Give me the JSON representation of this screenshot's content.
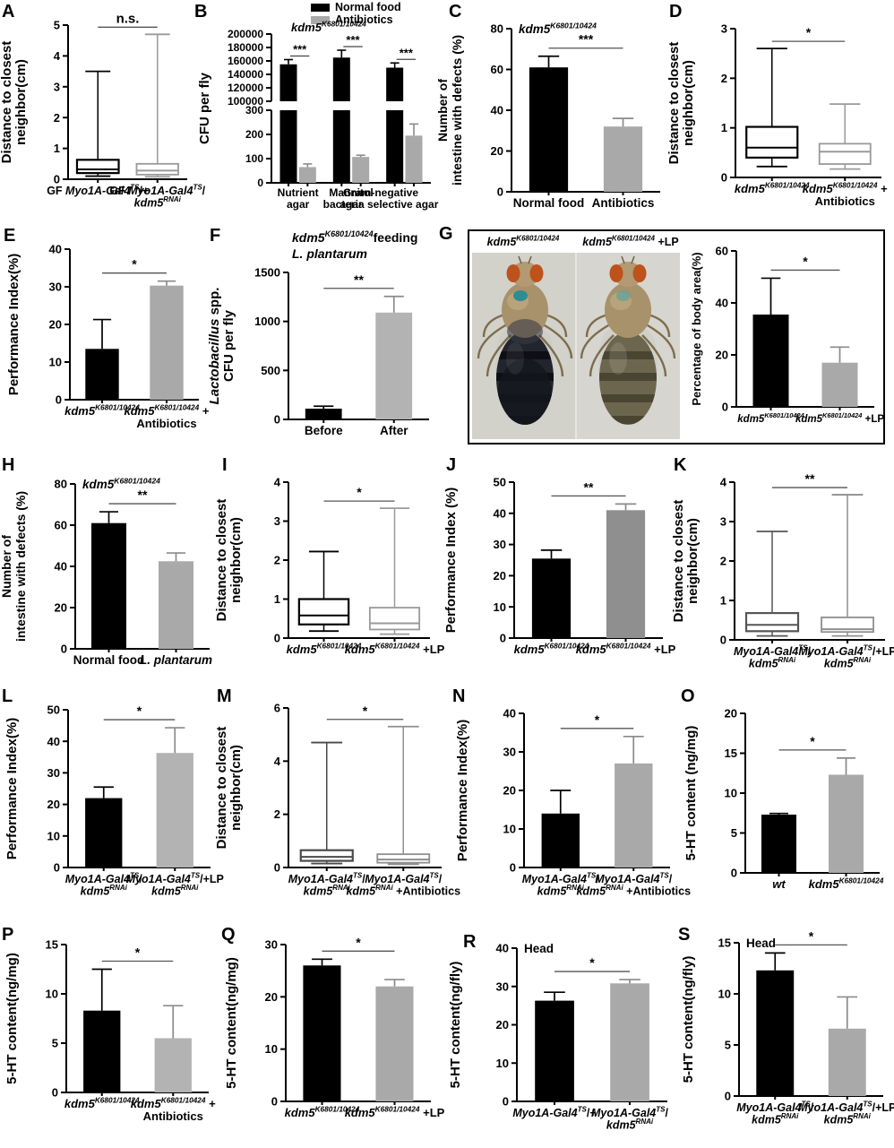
{
  "figure": {
    "background": "#ffffff",
    "panel_letters": [
      "A",
      "B",
      "C",
      "D",
      "E",
      "F",
      "G",
      "H",
      "I",
      "J",
      "K",
      "L",
      "M",
      "N",
      "O",
      "P",
      "Q",
      "R",
      "S"
    ]
  },
  "colors": {
    "bar_black": "#000000",
    "bar_gray": "#a9a9a9",
    "sig_line": "#555555"
  },
  "chart_data": [
    {
      "panel": "A",
      "type": "box",
      "ylabel": "Distance to closest\nneighbor(cm)",
      "ylim": [
        0,
        5
      ],
      "yticks": [
        0,
        1,
        2,
        3,
        4,
        5
      ],
      "sig": "n.s.",
      "categories": [
        "GF ~Myo1A-Gal4~^TS^/+",
        "GF ~Myo1A-Gal4~^TS^/\n~kdm5~^RNAi^"
      ],
      "boxes": [
        {
          "min": 0.1,
          "q1": 0.2,
          "median": 0.32,
          "q3": 0.63,
          "max": 3.5,
          "color": "#000000"
        },
        {
          "min": 0.08,
          "q1": 0.15,
          "median": 0.28,
          "q3": 0.5,
          "max": 4.7,
          "color": "#9a9a9a"
        }
      ]
    },
    {
      "panel": "B",
      "type": "bar-broken",
      "title": "~kdm5~^K6801/10424^",
      "ylabel": "CFU per fly",
      "legend": [
        {
          "label": "Normal food",
          "color": "#000000"
        },
        {
          "label": "Antibiotics",
          "color": "#a9a9a9"
        }
      ],
      "axis_upper": {
        "lim": [
          100000,
          200000
        ],
        "ticks": [
          100000,
          120000,
          140000,
          160000,
          180000,
          200000
        ]
      },
      "axis_lower": {
        "lim": [
          0,
          300
        ],
        "ticks": [
          0,
          100,
          200,
          300
        ]
      },
      "categories": [
        "Nutrient\nagar",
        "Mannitol\nagar",
        "Gram-negative\nbacteria selective agar"
      ],
      "series": [
        {
          "name": "Normal food",
          "color": "#000000",
          "values": [
            155000,
            165000,
            150000
          ],
          "errors": [
            7000,
            11000,
            7000
          ]
        },
        {
          "name": "Antibiotics",
          "color": "#a9a9a9",
          "values": [
            65,
            107,
            195
          ],
          "errors": [
            13,
            7,
            48
          ]
        }
      ],
      "sig": [
        "***",
        "***",
        "***"
      ]
    },
    {
      "panel": "C",
      "type": "bar",
      "title": "~kdm5~^K6801/10424^",
      "ylabel": "Number of\nintestine with defects (%)",
      "ylim": [
        0,
        80
      ],
      "yticks": [
        0,
        20,
        40,
        60,
        80
      ],
      "sig": "***",
      "categories": [
        "Normal food",
        "Antibiotics"
      ],
      "values": [
        61,
        32
      ],
      "errors": [
        5.5,
        4
      ],
      "colors": [
        "#000000",
        "#a9a9a9"
      ]
    },
    {
      "panel": "D",
      "type": "box",
      "ylabel": "Distance to closest\nneighbor(cm)",
      "ylim": [
        0,
        3
      ],
      "yticks": [
        0,
        1,
        2,
        3
      ],
      "sig": "*",
      "categories": [
        "~kdm5~^K6801/10424^",
        "~kdm5~^K6801/10424^ +\nAntibiotics"
      ],
      "boxes": [
        {
          "min": 0.22,
          "q1": 0.4,
          "median": 0.6,
          "q3": 1.02,
          "max": 2.6,
          "color": "#000000"
        },
        {
          "min": 0.17,
          "q1": 0.27,
          "median": 0.52,
          "q3": 0.68,
          "max": 1.48,
          "color": "#9a9a9a"
        }
      ]
    },
    {
      "panel": "E",
      "type": "bar",
      "ylabel": "Performance Index(%)",
      "ylim": [
        0,
        40
      ],
      "yticks": [
        0,
        10,
        20,
        30,
        40
      ],
      "sig": "*",
      "categories": [
        "~kdm5~^K6801/10424^",
        "~kdm5~^K6801/10424^ +\nAntibiotics"
      ],
      "values": [
        13.5,
        30.3
      ],
      "errors": [
        7.8,
        1.2
      ],
      "colors": [
        "#000000",
        "#a9a9a9"
      ]
    },
    {
      "panel": "F",
      "type": "bar",
      "title": "~kdm5~^K6801/10424^feeding\n~L. plantarum~",
      "ylabel": "~Lactobacillus~ spp.\nCFU per fly",
      "ylim": [
        0,
        1500
      ],
      "yticks": [
        0,
        500,
        1000,
        1500
      ],
      "sig": "**",
      "categories": [
        "Before",
        "After"
      ],
      "values": [
        110,
        1090
      ],
      "errors": [
        25,
        165
      ],
      "colors": [
        "#000000",
        "#b3b3b3"
      ]
    },
    {
      "panel": "G",
      "type": "photo-bar",
      "photo_labels": [
        "~kdm5~^K6801/10424^",
        "~kdm5~^K6801/10424^ +LP"
      ],
      "bar": {
        "ylabel": "Percentage of body area(%)",
        "ylim": [
          0,
          60
        ],
        "yticks": [
          0,
          20,
          40,
          60
        ],
        "sig": "*",
        "categories": [
          "~kdm5~^K6801/10424^",
          "~kdm5~^K6801/10424^ +LP"
        ],
        "values": [
          35.5,
          17
        ],
        "errors": [
          14,
          6
        ],
        "colors": [
          "#000000",
          "#a9a9a9"
        ]
      }
    },
    {
      "panel": "H",
      "type": "bar",
      "title": "~kdm5~^K6801/10424^",
      "ylabel": "Number of\nintestine with defects (%)",
      "ylim": [
        0,
        80
      ],
      "yticks": [
        0,
        20,
        40,
        60,
        80
      ],
      "sig": "**",
      "categories": [
        "Normal food",
        "~L. plantarum~"
      ],
      "values": [
        61,
        42.5
      ],
      "errors": [
        5.5,
        4
      ],
      "colors": [
        "#000000",
        "#a9a9a9"
      ]
    },
    {
      "panel": "I",
      "type": "box",
      "ylabel": "Distance to closest\nneighbor(cm)",
      "ylim": [
        0,
        4
      ],
      "yticks": [
        0,
        1,
        2,
        3,
        4
      ],
      "sig": "*",
      "categories": [
        "~kdm5~^K6801/10424^",
        "~kdm5~^K6801/10424^ +LP"
      ],
      "boxes": [
        {
          "min": 0.18,
          "q1": 0.35,
          "median": 0.58,
          "q3": 1.0,
          "max": 2.22,
          "color": "#000000"
        },
        {
          "min": 0.1,
          "q1": 0.22,
          "median": 0.38,
          "q3": 0.78,
          "max": 3.33,
          "color": "#9a9a9a"
        }
      ]
    },
    {
      "panel": "J",
      "type": "bar",
      "ylabel": "Performance Index (%)",
      "ylim": [
        0,
        50
      ],
      "yticks": [
        0,
        10,
        20,
        30,
        40,
        50
      ],
      "sig": "**",
      "categories": [
        "~kdm5~^K6801/10424^",
        "~kdm5~^K6801/10424^ +LP"
      ],
      "values": [
        25.5,
        41
      ],
      "errors": [
        2.7,
        2
      ],
      "colors": [
        "#000000",
        "#8f8f8f"
      ]
    },
    {
      "panel": "K",
      "type": "box",
      "ylabel": "Distance to closest\nneighbor(cm)",
      "ylim": [
        0,
        4
      ],
      "yticks": [
        0,
        1,
        2,
        3,
        4
      ],
      "sig": "**",
      "categories": [
        "~Myo1A-Gal4~^TS^/\n~kdm5~^RNAi^",
        "~Myo1A-Gal4~^TS^/+LP\n~kdm5~^RNAi^"
      ],
      "boxes": [
        {
          "min": 0.1,
          "q1": 0.22,
          "median": 0.38,
          "q3": 0.68,
          "max": 2.75,
          "color": "#555555"
        },
        {
          "min": 0.1,
          "q1": 0.2,
          "median": 0.27,
          "q3": 0.57,
          "max": 3.68,
          "color": "#8f8f8f"
        }
      ]
    },
    {
      "panel": "L",
      "type": "bar",
      "ylabel": "Performance Index(%)",
      "ylim": [
        0,
        50
      ],
      "yticks": [
        0,
        10,
        20,
        30,
        40,
        50
      ],
      "sig": "*",
      "categories": [
        "~Myo1A-Gal4~^TS^/\n~kdm5~^RNAi^",
        "~Myo1A-Gal4~^TS^/+LP\n~kdm5~^RNAi^"
      ],
      "values": [
        22,
        36.3
      ],
      "errors": [
        3.5,
        8
      ],
      "colors": [
        "#000000",
        "#b3b3b3"
      ]
    },
    {
      "panel": "M",
      "type": "box",
      "ylabel": "Distance to closest\nneighbor(cm)",
      "ylim": [
        0,
        6
      ],
      "yticks": [
        0,
        2,
        4,
        6
      ],
      "sig": "*",
      "categories": [
        "~Myo1A-Gal4~^TS^/\n~kdm5~^RNAi^",
        "~Myo1A-Gal4~^TS^/\n~kdm5~^RNAi^ +Antibiotics"
      ],
      "boxes": [
        {
          "min": 0.15,
          "q1": 0.25,
          "median": 0.4,
          "q3": 0.65,
          "max": 4.7,
          "color": "#4a4a4a"
        },
        {
          "min": 0.12,
          "q1": 0.18,
          "median": 0.3,
          "q3": 0.5,
          "max": 5.3,
          "color": "#8f8f8f"
        }
      ]
    },
    {
      "panel": "N",
      "type": "bar",
      "ylabel": "Performance Index(%)",
      "ylim": [
        0,
        40
      ],
      "yticks": [
        0,
        10,
        20,
        30,
        40
      ],
      "sig": "*",
      "categories": [
        "~Myo1A-Gal4~^TS^/\n~kdm5~^RNAi^",
        "~Myo1A-Gal4~^TS^/\n~kdm5~^RNAi^ +Antibiotics"
      ],
      "values": [
        14,
        27
      ],
      "errors": [
        6,
        7
      ],
      "colors": [
        "#000000",
        "#a9a9a9"
      ]
    },
    {
      "panel": "O",
      "type": "bar",
      "ylabel": "5-HT content (ng/mg)",
      "ylim": [
        0,
        20
      ],
      "yticks": [
        0,
        5,
        10,
        15,
        20
      ],
      "sig": "*",
      "categories": [
        "~wt~",
        "~kdm5~^K6801/10424^"
      ],
      "values": [
        7.3,
        12.3
      ],
      "errors": [
        0.15,
        2.1
      ],
      "colors": [
        "#000000",
        "#a9a9a9"
      ]
    },
    {
      "panel": "P",
      "type": "bar",
      "ylabel": "5-HT content(ng/mg)",
      "ylim": [
        0,
        15
      ],
      "yticks": [
        0,
        5,
        10,
        15
      ],
      "sig": "*",
      "categories": [
        "~kdm5~^K6801/10424^",
        "~kdm5~^K6801/10424^ +\nAntibiotics"
      ],
      "values": [
        8.3,
        5.5
      ],
      "errors": [
        4.2,
        3.3
      ],
      "colors": [
        "#000000",
        "#b3b3b3"
      ]
    },
    {
      "panel": "Q",
      "type": "bar",
      "ylabel": "5-HT content(ng/mg)",
      "ylim": [
        0,
        30
      ],
      "yticks": [
        0,
        10,
        20,
        30
      ],
      "sig": "*",
      "categories": [
        "~kdm5~^K6801/10424^",
        "~kdm5~^K6801/10424^ +LP"
      ],
      "values": [
        26,
        22
      ],
      "errors": [
        1.2,
        1.3
      ],
      "colors": [
        "#000000",
        "#a9a9a9"
      ]
    },
    {
      "panel": "R",
      "type": "bar",
      "title": "Head",
      "ylabel": "5-HT content(ng/fly)",
      "ylim": [
        0,
        40
      ],
      "yticks": [
        0,
        10,
        20,
        30,
        40
      ],
      "sig": "*",
      "categories": [
        "~Myo1A-Gal4~^TS^/+",
        "~Myo1A-Gal4~^TS^/\n~kdm5~^RNAi^"
      ],
      "values": [
        26.3,
        30.8
      ],
      "errors": [
        2.2,
        1
      ],
      "colors": [
        "#000000",
        "#a9a9a9"
      ]
    },
    {
      "panel": "S",
      "type": "bar",
      "title": "Head",
      "ylabel": "5-HT content(ng/fly)",
      "ylim": [
        0,
        15
      ],
      "yticks": [
        0,
        5,
        10,
        15
      ],
      "sig": "*",
      "categories": [
        "~Myo1A-Gal4~^TS^/\n~kdm5~^RNAi^",
        "~Myo1A-Gal4~^TS^/+LP\n~kdm5~^RNAi^"
      ],
      "values": [
        12.3,
        6.6
      ],
      "errors": [
        1.7,
        3.1
      ],
      "colors": [
        "#000000",
        "#a9a9a9"
      ]
    }
  ]
}
